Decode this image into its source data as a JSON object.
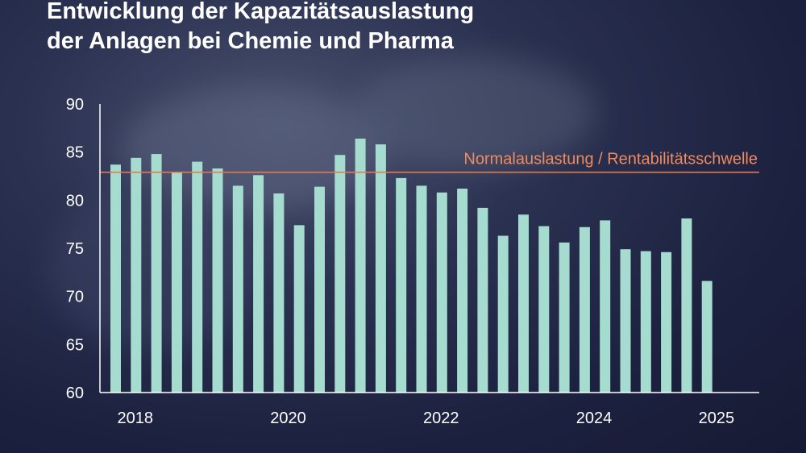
{
  "chart_data": {
    "type": "bar",
    "title_lines": [
      "Entwicklung der Kapazitätsauslastung",
      "der Anlagen bei Chemie und Pharma"
    ],
    "reference_line": {
      "value": 82.9,
      "label": "Normalauslastung / Rentabilitätsschwelle"
    },
    "x_tick_labels": [
      "2018",
      "2020",
      "2022",
      "2024",
      "2025"
    ],
    "y_ticks": [
      60,
      65,
      70,
      75,
      80,
      85,
      90
    ],
    "ylim": [
      60,
      90
    ],
    "values": [
      83.7,
      84.4,
      84.8,
      82.9,
      84.0,
      83.3,
      81.5,
      82.6,
      80.7,
      77.4,
      81.4,
      84.7,
      86.4,
      85.8,
      82.3,
      81.5,
      80.8,
      81.2,
      79.2,
      76.3,
      78.5,
      77.3,
      75.6,
      77.2,
      77.9,
      74.9,
      74.7,
      74.6,
      78.1,
      71.6
    ],
    "colors": {
      "bar": "#a5dccf",
      "reference_line": "#e8784c",
      "reference_label": "#f08a5d",
      "axis": "#ffffff",
      "text": "#ffffff"
    }
  }
}
